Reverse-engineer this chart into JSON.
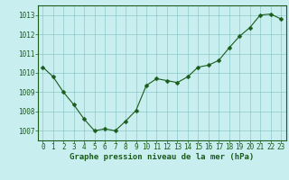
{
  "x": [
    0,
    1,
    2,
    3,
    4,
    5,
    6,
    7,
    8,
    9,
    10,
    11,
    12,
    13,
    14,
    15,
    16,
    17,
    18,
    19,
    20,
    21,
    22,
    23
  ],
  "y": [
    1010.3,
    1009.8,
    1009.0,
    1008.35,
    1007.6,
    1007.0,
    1007.1,
    1007.0,
    1007.5,
    1008.05,
    1009.35,
    1009.7,
    1009.6,
    1009.5,
    1009.8,
    1010.3,
    1010.4,
    1010.65,
    1011.3,
    1011.9,
    1012.35,
    1013.0,
    1013.05,
    1012.8
  ],
  "line_color": "#1a5c1a",
  "marker_color": "#1a5c1a",
  "bg_color": "#c8eef0",
  "grid_color": "#80c0c0",
  "title": "Graphe pression niveau de la mer (hPa)",
  "xlabel_ticks": [
    "0",
    "1",
    "2",
    "3",
    "4",
    "5",
    "6",
    "7",
    "8",
    "9",
    "10",
    "11",
    "12",
    "13",
    "14",
    "15",
    "16",
    "17",
    "18",
    "19",
    "20",
    "21",
    "22",
    "23"
  ],
  "yticks": [
    1007,
    1008,
    1009,
    1010,
    1011,
    1012,
    1013
  ],
  "ylim": [
    1006.5,
    1013.5
  ],
  "xlim": [
    -0.5,
    23.5
  ],
  "title_color": "#1a5c1a",
  "title_fontsize": 6.5,
  "tick_fontsize": 5.5,
  "marker_size": 2.5,
  "linewidth": 0.8
}
